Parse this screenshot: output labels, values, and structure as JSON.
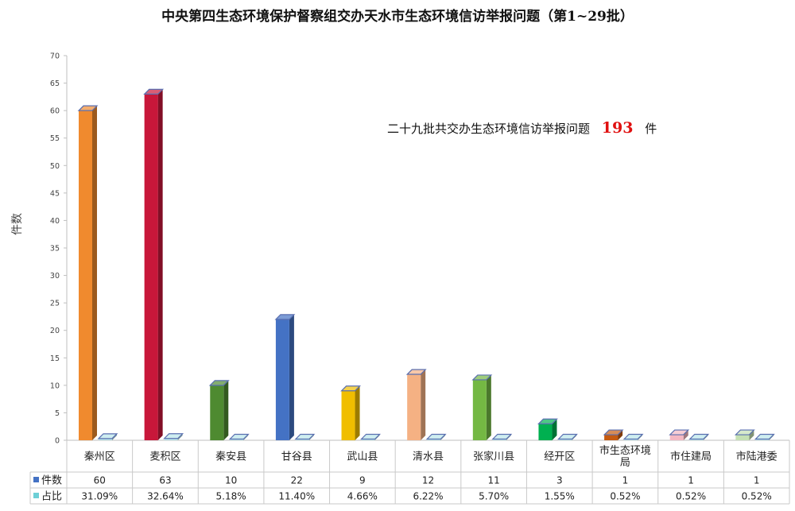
{
  "chart_data": {
    "type": "bar",
    "title": "中央第四生态环境保护督察组交办天水市生态环境信访举报问题（第1~29批）",
    "ylabel": "件数",
    "ylim": [
      0,
      70
    ],
    "yticks": [
      0,
      5,
      10,
      15,
      20,
      25,
      30,
      35,
      40,
      45,
      50,
      55,
      60,
      65,
      70
    ],
    "grid": false,
    "annotation": {
      "prefix": "二十九批共交办生态环境信访举报问题",
      "total": "193",
      "suffix": "件"
    },
    "categories": [
      {
        "lines": [
          "秦州区"
        ]
      },
      {
        "lines": [
          "麦积区"
        ]
      },
      {
        "lines": [
          "秦安县"
        ]
      },
      {
        "lines": [
          "甘谷县"
        ]
      },
      {
        "lines": [
          "武山县"
        ]
      },
      {
        "lines": [
          "清水县"
        ]
      },
      {
        "lines": [
          "张家川县"
        ]
      },
      {
        "lines": [
          "经开区"
        ]
      },
      {
        "lines": [
          "市生态环境",
          "局"
        ]
      },
      {
        "lines": [
          "市住建局"
        ]
      },
      {
        "lines": [
          "市陆港委"
        ]
      }
    ],
    "series": [
      {
        "name": "件数",
        "legend_color": "#4472c4",
        "values": [
          60,
          63,
          10,
          22,
          9,
          12,
          11,
          3,
          1,
          1,
          1
        ],
        "labels": [
          "60",
          "63",
          "10",
          "22",
          "9",
          "12",
          "11",
          "3",
          "1",
          "1",
          "1"
        ],
        "colors": [
          "#f08a2e",
          "#c8173a",
          "#4e8a30",
          "#4472c4",
          "#f0be00",
          "#f5b183",
          "#74b843",
          "#00b050",
          "#c55a11",
          "#f4b8c3",
          "#c5e0b4"
        ]
      },
      {
        "name": "占比",
        "legend_color": "#6dcfd6",
        "values": [
          0.3109,
          0.3264,
          0.0518,
          0.114,
          0.0466,
          0.0622,
          0.057,
          0.0155,
          0.0052,
          0.0052,
          0.0052
        ],
        "labels": [
          "31.09%",
          "32.64%",
          "5.18%",
          "11.40%",
          "4.66%",
          "6.22%",
          "5.70%",
          "1.55%",
          "0.52%",
          "0.52%",
          "0.52%"
        ],
        "color": "#b9e6ea"
      }
    ]
  }
}
